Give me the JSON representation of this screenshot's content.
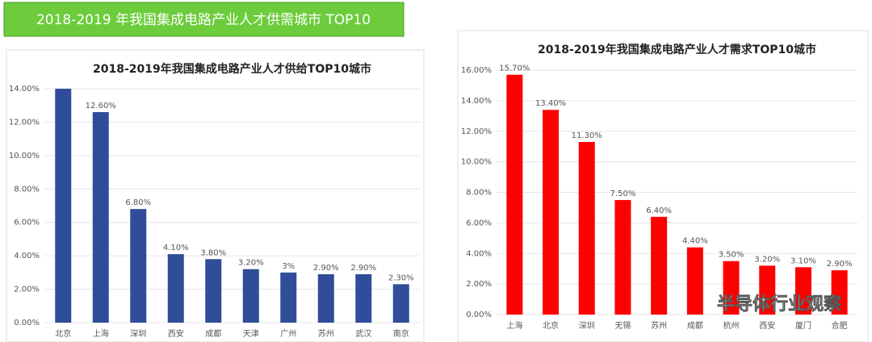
{
  "banner": {
    "title": "2018-2019 年我国集成电路产业人才供需城市 TOP10"
  },
  "watermark": "半导体行业观察",
  "chart_data": [
    {
      "type": "bar",
      "title": "2018-2019年我国集成电路产业人才供给TOP10城市",
      "categories": [
        "北京",
        "上海",
        "深圳",
        "西安",
        "成都",
        "天津",
        "广州",
        "苏州",
        "武汉",
        "南京"
      ],
      "values": [
        14,
        12.6,
        6.8,
        4.1,
        3.8,
        3.2,
        3,
        2.9,
        2.9,
        2.3
      ],
      "value_labels": [
        null,
        "12.60%",
        "6.80%",
        "4.10%",
        "3.80%",
        "3.20%",
        "3%",
        "2.90%",
        "2.90%",
        "2.30%"
      ],
      "color": "#2f4d98",
      "grid": true,
      "ylim": [
        0,
        14
      ],
      "yticks": [
        {
          "value": 0,
          "label": "0.00%"
        },
        {
          "value": 2,
          "label": "2.00%"
        },
        {
          "value": 4,
          "label": "4.00%"
        },
        {
          "value": 6,
          "label": "6.00%"
        },
        {
          "value": 8,
          "label": "8.00%"
        },
        {
          "value": 10,
          "label": "10.00%"
        },
        {
          "value": 12,
          "label": "12.00%"
        },
        {
          "value": 14,
          "label": "14.00%"
        }
      ]
    },
    {
      "type": "bar",
      "title": "2018-2019年我国集成电路产业人才需求TOP10城市",
      "categories": [
        "上海",
        "北京",
        "深圳",
        "无锡",
        "苏州",
        "成都",
        "杭州",
        "西安",
        "厦门",
        "合肥"
      ],
      "values": [
        15.7,
        13.4,
        11.3,
        7.5,
        6.4,
        4.4,
        3.5,
        3.2,
        3.1,
        2.9
      ],
      "value_labels": [
        "15.70%",
        "13.40%",
        "11.30%",
        "7.50%",
        "6.40%",
        "4.40%",
        "3.50%",
        "3.20%",
        "3.10%",
        "2.90%"
      ],
      "color": "#ff0000",
      "grid": true,
      "ylim": [
        0,
        16
      ],
      "yticks": [
        {
          "value": 0,
          "label": "0.00%"
        },
        {
          "value": 2,
          "label": "2.00%"
        },
        {
          "value": 4,
          "label": "4.00%"
        },
        {
          "value": 6,
          "label": "6.00%"
        },
        {
          "value": 8,
          "label": "8.00%"
        },
        {
          "value": 10,
          "label": "10.00%"
        },
        {
          "value": 12,
          "label": "12.00%"
        },
        {
          "value": 14,
          "label": "14.00%"
        },
        {
          "value": 16,
          "label": "16.00%"
        }
      ]
    }
  ]
}
